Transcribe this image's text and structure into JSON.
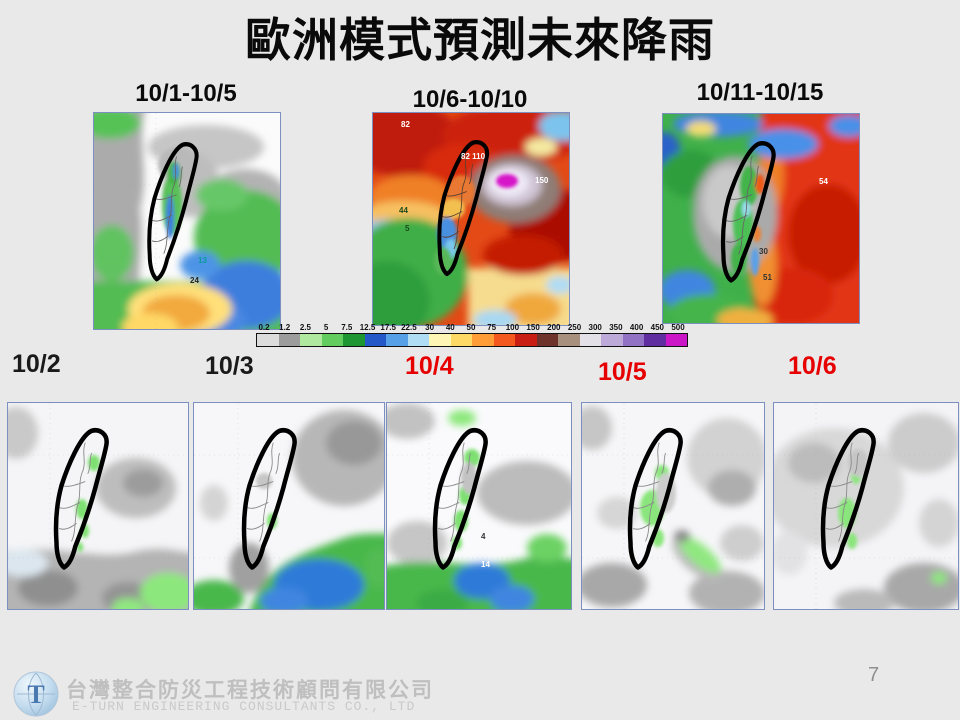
{
  "slide": {
    "title": "歐洲模式預測未來降雨",
    "page_number": "7",
    "background_color": "#e9e9e9",
    "highlight_red": "#e60000"
  },
  "top_maps": [
    {
      "label": "10/1-10/5",
      "annotations": [
        {
          "text": "13"
        },
        {
          "text": "24"
        }
      ]
    },
    {
      "label": "10/6-10/10",
      "annotations": [
        {
          "text": "82"
        },
        {
          "text": "82 110"
        },
        {
          "text": "150"
        },
        {
          "text": "44"
        },
        {
          "text": "5"
        }
      ]
    },
    {
      "label": "10/11-10/15",
      "annotations": [
        {
          "text": "54"
        },
        {
          "text": "30"
        },
        {
          "text": "51"
        }
      ]
    }
  ],
  "colorbar": {
    "ticks": [
      "0.2",
      "1.2",
      "2.5",
      "5",
      "7.5",
      "12.5",
      "17.5",
      "22.5",
      "30",
      "40",
      "50",
      "75",
      "100",
      "150",
      "200",
      "250",
      "300",
      "350",
      "400",
      "450",
      "500"
    ],
    "segment_colors": [
      "#dcdcdc",
      "#9c9c9c",
      "#b0e8a0",
      "#62cc5e",
      "#1e9632",
      "#2458c8",
      "#55a0e6",
      "#b0dcf4",
      "#fdf6b4",
      "#ffd965",
      "#ff9e38",
      "#f4581e",
      "#c81e14",
      "#6e342c",
      "#a8907e",
      "#e4e0e8",
      "#beaad8",
      "#9172c4",
      "#5f2da0",
      "#cb16c8"
    ]
  },
  "timeline": [
    {
      "label": "10/2",
      "color": "#1a1a1a"
    },
    {
      "label": "10/3",
      "color": "#1a1a1a"
    },
    {
      "label": "10/4",
      "color": "#e60000"
    },
    {
      "label": "10/5",
      "color": "#e60000"
    },
    {
      "label": "10/6",
      "color": "#e60000"
    }
  ],
  "bottom_maps": [
    {
      "date": "10/2",
      "annotations": []
    },
    {
      "date": "10/3",
      "annotations": []
    },
    {
      "date": "10/4",
      "annotations": [
        {
          "text": "4"
        },
        {
          "text": "14"
        }
      ]
    },
    {
      "date": "10/5",
      "annotations": []
    },
    {
      "date": "10/6",
      "annotations": []
    }
  ],
  "footer": {
    "company_zh": "台灣整合防災工程技術顧問有限公司",
    "company_en": "E-TURN ENGINEERING CONSULTANTS CO., LTD",
    "logo_letter": "T"
  }
}
